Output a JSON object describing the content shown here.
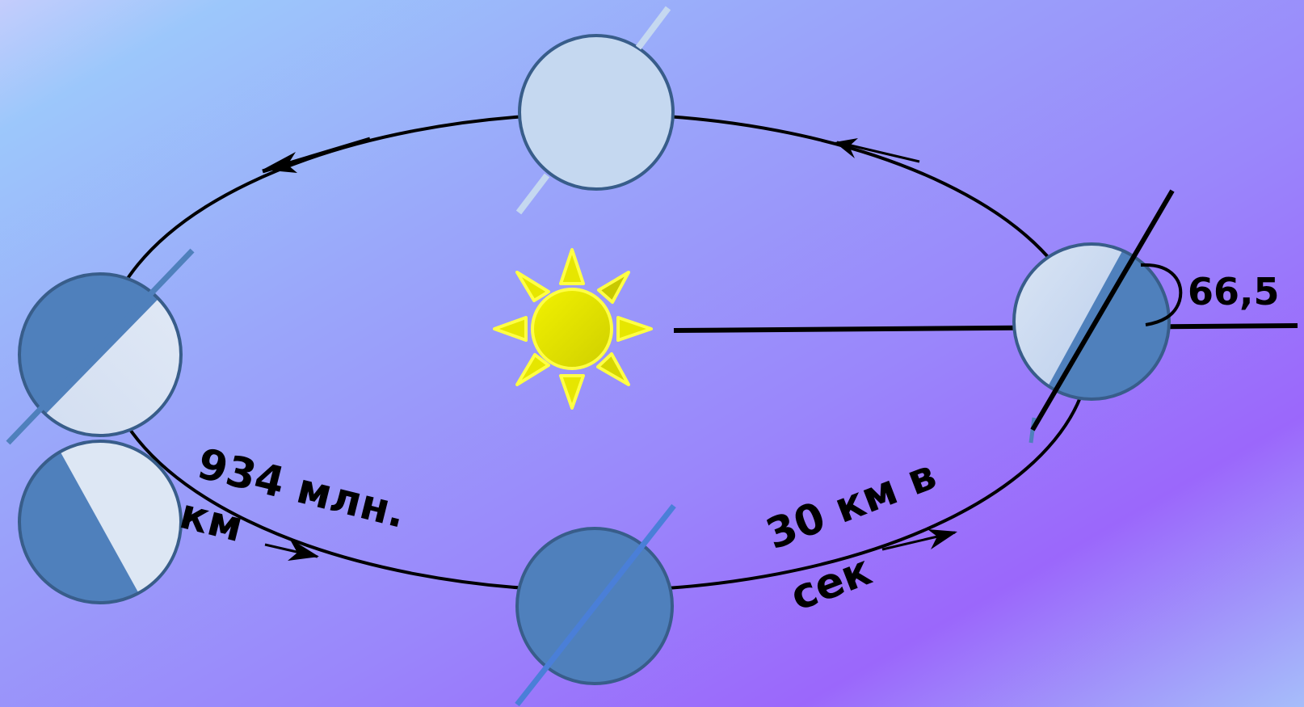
{
  "labels": {
    "distance_line1": "934 млн.",
    "distance_line2": "км",
    "speed_line1": "30 км в",
    "speed_line2": "сек",
    "axial_angle": "66,5"
  },
  "colors": {
    "orbit": "#000000",
    "sun_fill": "#e6e600",
    "sun_stroke": "#ffff44",
    "planet_light": "#c5d8f0",
    "planet_dark": "#4f80bc",
    "planet_outline": "#385d8a"
  },
  "icons": {
    "sun": "sun-icon",
    "planet": "earth-phase-icon"
  }
}
